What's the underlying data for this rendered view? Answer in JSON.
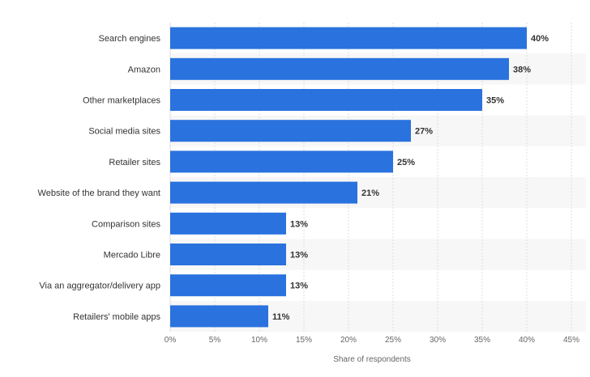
{
  "chart_data": {
    "type": "bar",
    "orientation": "horizontal",
    "categories": [
      "Search engines",
      "Amazon",
      "Other marketplaces",
      "Social media sites",
      "Retailer sites",
      "Website of the brand they want",
      "Comparison sites",
      "Mercado Libre",
      "Via an aggregator/delivery app",
      "Retailers' mobile apps"
    ],
    "values": [
      40,
      38,
      35,
      27,
      25,
      21,
      13,
      13,
      13,
      11
    ],
    "value_labels": [
      "40%",
      "38%",
      "35%",
      "27%",
      "25%",
      "21%",
      "13%",
      "13%",
      "13%",
      "11%"
    ],
    "xlabel": "Share of respondents",
    "ylabel": "",
    "xlim": [
      0,
      45
    ],
    "ticks": [
      0,
      5,
      10,
      15,
      20,
      25,
      30,
      35,
      40,
      45
    ],
    "tick_labels": [
      "0%",
      "5%",
      "10%",
      "15%",
      "20%",
      "25%",
      "30%",
      "35%",
      "40%",
      "45%"
    ],
    "grid": true,
    "legend": "none",
    "bar_color": "#2a72de",
    "band_color": "#f7f7f7",
    "grid_color": "#dddddd"
  }
}
